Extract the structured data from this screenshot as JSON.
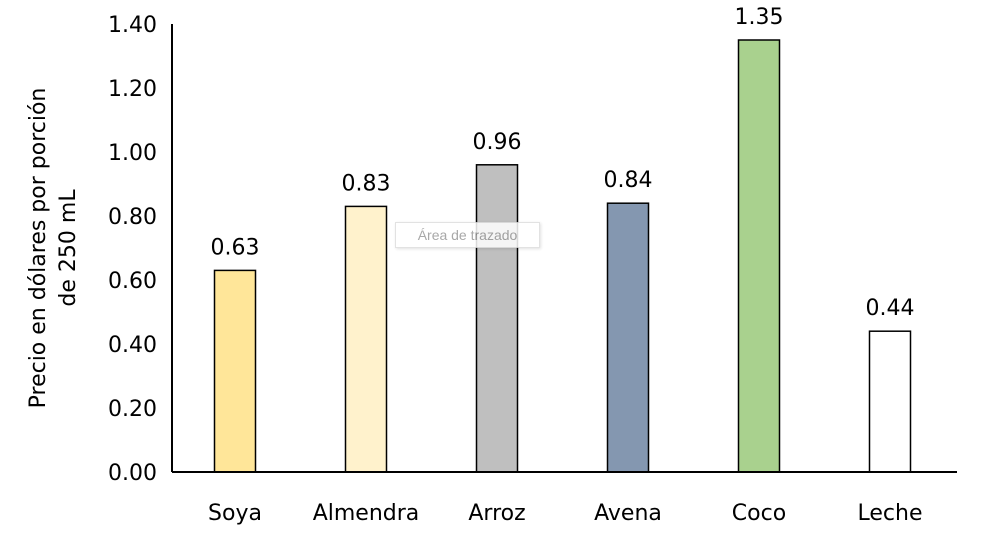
{
  "chart_data": {
    "type": "bar",
    "title": "",
    "xlabel": "",
    "ylabel": "Precio en dólares por porción de 250 mL",
    "ylabel_lines": [
      "Precio en dólares por porción",
      "de 250 mL"
    ],
    "categories": [
      "Soya",
      "Almendra",
      "Arroz",
      "Avena",
      "Coco",
      "Leche"
    ],
    "values": [
      0.63,
      0.83,
      0.96,
      0.84,
      1.35,
      0.44
    ],
    "data_labels": [
      "0.63",
      "0.83",
      "0.96",
      "0.84",
      "1.35",
      "0.44"
    ],
    "colors": [
      "#FFE699",
      "#FFF2CC",
      "#BFBFBF",
      "#8497B0",
      "#A9D18E",
      "#FFFFFF"
    ],
    "ylim": [
      0,
      1.4
    ],
    "yticks": [
      "0.00",
      "0.20",
      "0.40",
      "0.60",
      "0.80",
      "1.00",
      "1.20",
      "1.40"
    ],
    "grid": false,
    "legend": "none"
  },
  "tooltip": "Área de trazado"
}
